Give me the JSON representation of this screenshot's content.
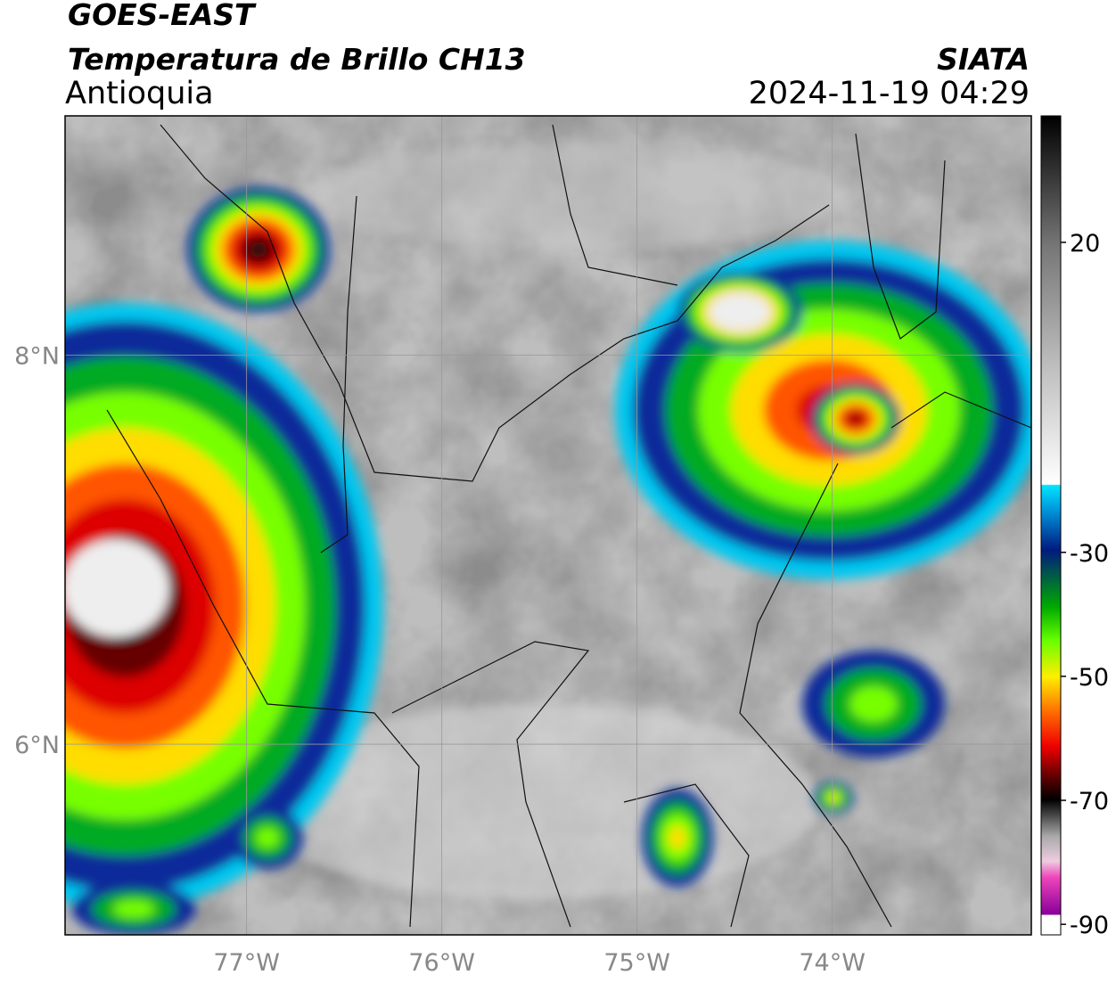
{
  "title": "GOES-EAST",
  "subtitle": "Temperatura de Brillo CH13",
  "region": "Antioquia",
  "source": "SIATA",
  "timestamp": "2024-11-19 04:29",
  "map": {
    "lonlim": [
      -77.93,
      -72.98
    ],
    "latlim": [
      5.02,
      9.23
    ],
    "xticks": [
      {
        "value": -77,
        "label": "77°W"
      },
      {
        "value": -76,
        "label": "76°W"
      },
      {
        "value": -75,
        "label": "75°W"
      },
      {
        "value": -74,
        "label": "74°W"
      }
    ],
    "yticks": [
      {
        "value": 8,
        "label": "8°N"
      },
      {
        "value": 6,
        "label": "6°N"
      }
    ]
  },
  "colorbar": {
    "lim": [
      -91.7,
      40.4
    ],
    "ticks": [
      -90,
      -70,
      -50,
      -30,
      20
    ]
  }
}
